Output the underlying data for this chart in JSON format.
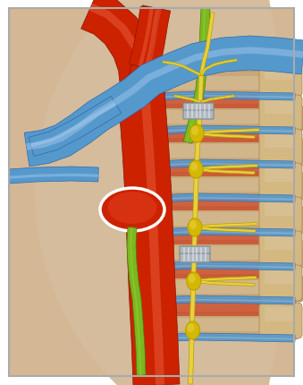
{
  "figsize": [
    3.39,
    4.31
  ],
  "dpi": 100,
  "bg_color": "#e8d5b8",
  "border_color": "#999999",
  "white": "#ffffff",
  "aorta_main": "#cc2200",
  "aorta_dark": "#8b1500",
  "aorta_light": "#e04020",
  "aorta_highlight": "#ee6644",
  "vein_main": "#5599cc",
  "vein_dark": "#3366aa",
  "vein_light": "#88bbdd",
  "vein_highlight": "#aaccee",
  "rib_bg": "#d4b896",
  "rib_main": "#c8a87a",
  "rib_dark": "#a08860",
  "intercostal_muscle": "#cc4422",
  "intercostal_muscle2": "#b83311",
  "green_nerve": "#7ab820",
  "green_nerve_dark": "#4a8000",
  "green_nerve_light": "#a0d040",
  "sym_yellow": "#e8d040",
  "sym_yellow_dark": "#b8a000",
  "ganglion_body": "#d4b800",
  "ganglion_light": "#e8d040",
  "spine_body": "#d4b882",
  "spine_dark": "#b09060",
  "clip_body": "#b0b8c0",
  "clip_dark": "#808890",
  "clip_light": "#dce0e4",
  "tissue_bg": "#c8b090",
  "tissue_mid": "#d4bc9c",
  "tissue_light": "#e0cca8"
}
